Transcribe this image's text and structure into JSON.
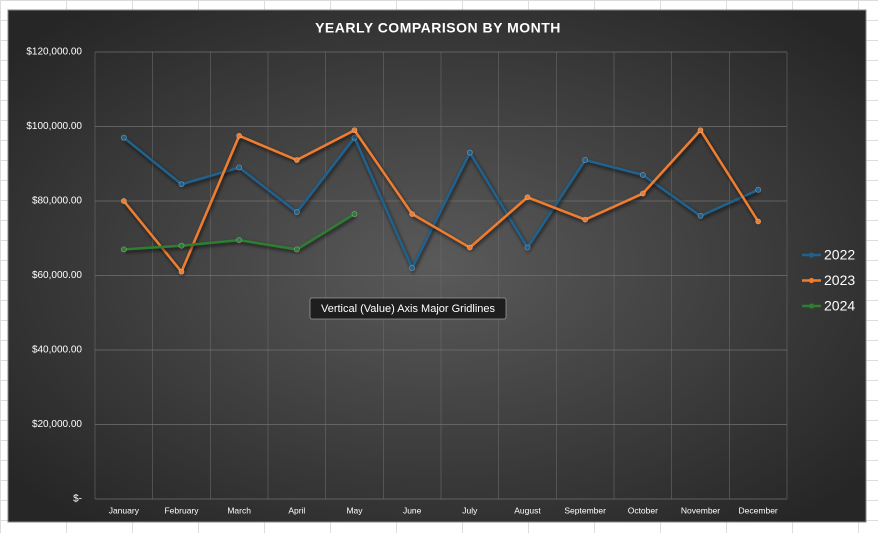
{
  "chart_data": {
    "type": "line",
    "title": "YEARLY COMPARISON BY MONTH",
    "categories": [
      "January",
      "February",
      "March",
      "April",
      "May",
      "June",
      "July",
      "August",
      "September",
      "October",
      "November",
      "December"
    ],
    "series": [
      {
        "name": "2022",
        "color": "#21618c",
        "values": [
          97000,
          84500,
          89000,
          77000,
          97000,
          62000,
          93000,
          67500,
          91000,
          87000,
          76000,
          83000
        ]
      },
      {
        "name": "2023",
        "color": "#ed7d31",
        "values": [
          80000,
          61000,
          97500,
          91000,
          99000,
          76500,
          67500,
          81000,
          75000,
          82000,
          99000,
          74500
        ]
      },
      {
        "name": "2024",
        "color": "#2e7d32",
        "values": [
          67000,
          68000,
          69500,
          67000,
          76500,
          null,
          null,
          null,
          null,
          null,
          null,
          null
        ]
      }
    ],
    "ylim": [
      0,
      120000
    ],
    "yticks": [
      {
        "value": 0,
        "label": "$-"
      },
      {
        "value": 20000,
        "label": "$20,000.00"
      },
      {
        "value": 40000,
        "label": "$40,000.00"
      },
      {
        "value": 60000,
        "label": "$60,000.00"
      },
      {
        "value": 80000,
        "label": "$80,000.00"
      },
      {
        "value": 100000,
        "label": "$100,000.00"
      },
      {
        "value": 120000,
        "label": "$120,000.00"
      }
    ],
    "grid": true,
    "legend": "right",
    "tooltip": "Vertical (Value) Axis Major Gridlines"
  }
}
